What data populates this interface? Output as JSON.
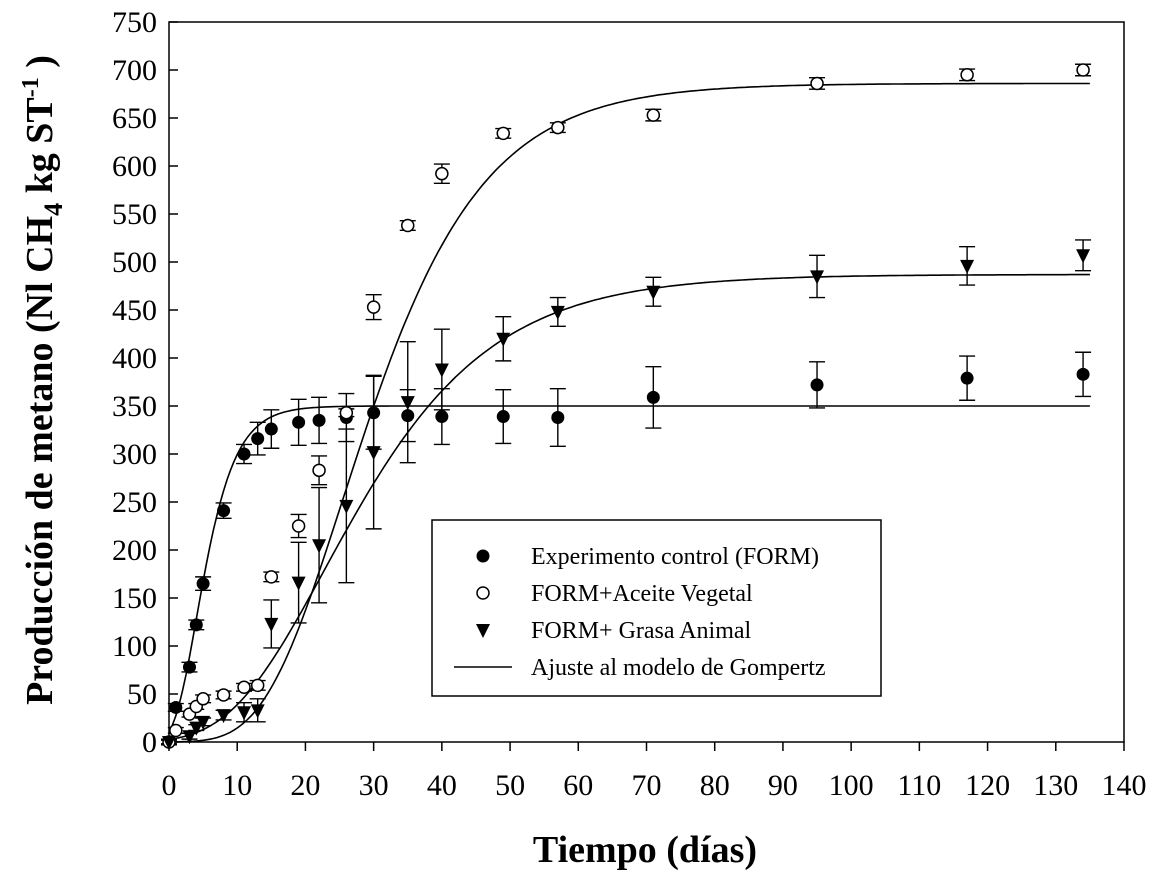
{
  "chart_data": {
    "type": "scatter",
    "title": "",
    "xlabel": "Tiempo (días)",
    "ylabel": {
      "prefix": "Producción de metano (Nl CH",
      "sub": "4",
      "mid": " kg ST",
      "sup": "-1",
      "suffix": " )"
    },
    "xlim": [
      0,
      140
    ],
    "ylim": [
      0,
      750
    ],
    "xticks": [
      0,
      10,
      20,
      30,
      40,
      50,
      60,
      70,
      80,
      90,
      100,
      110,
      120,
      130,
      140
    ],
    "yticks": [
      0,
      50,
      100,
      150,
      200,
      250,
      300,
      350,
      400,
      450,
      500,
      550,
      600,
      650,
      700,
      750
    ],
    "grid": false,
    "legend_position": "lower-center",
    "series": [
      {
        "name": "Experimento control (FORM)",
        "marker": "filled-circle",
        "points": [
          {
            "x": 0,
            "y": 0,
            "err": 3
          },
          {
            "x": 1,
            "y": 36,
            "err": 4
          },
          {
            "x": 3,
            "y": 78,
            "err": 5
          },
          {
            "x": 4,
            "y": 122,
            "err": 5
          },
          {
            "x": 5,
            "y": 165,
            "err": 7
          },
          {
            "x": 8,
            "y": 241,
            "err": 8
          },
          {
            "x": 11,
            "y": 300,
            "err": 10
          },
          {
            "x": 13,
            "y": 316,
            "err": 17
          },
          {
            "x": 15,
            "y": 326,
            "err": 20
          },
          {
            "x": 19,
            "y": 333,
            "err": 24
          },
          {
            "x": 22,
            "y": 335,
            "err": 24
          },
          {
            "x": 26,
            "y": 338,
            "err": 25
          },
          {
            "x": 30,
            "y": 343,
            "err": 38
          },
          {
            "x": 35,
            "y": 340,
            "err": 27
          },
          {
            "x": 40,
            "y": 339,
            "err": 29
          },
          {
            "x": 49,
            "y": 339,
            "err": 28
          },
          {
            "x": 57,
            "y": 338,
            "err": 30
          },
          {
            "x": 71,
            "y": 359,
            "err": 32
          },
          {
            "x": 95,
            "y": 372,
            "err": 24
          },
          {
            "x": 117,
            "y": 379,
            "err": 23
          },
          {
            "x": 134,
            "y": 383,
            "err": 23
          }
        ],
        "fit": {
          "A": 350,
          "mu": 40,
          "lambda": 0.8
        }
      },
      {
        "name": "FORM+Aceite Vegetal",
        "marker": "open-circle",
        "points": [
          {
            "x": 0,
            "y": 0,
            "err": 2
          },
          {
            "x": 1,
            "y": 12,
            "err": 3
          },
          {
            "x": 3,
            "y": 29,
            "err": 3
          },
          {
            "x": 4,
            "y": 37,
            "err": 3
          },
          {
            "x": 5,
            "y": 45,
            "err": 4
          },
          {
            "x": 8,
            "y": 49,
            "err": 4
          },
          {
            "x": 11,
            "y": 57,
            "err": 4
          },
          {
            "x": 13,
            "y": 59,
            "err": 5
          },
          {
            "x": 15,
            "y": 172,
            "err": 5
          },
          {
            "x": 19,
            "y": 225,
            "err": 12
          },
          {
            "x": 22,
            "y": 283,
            "err": 15
          },
          {
            "x": 26,
            "y": 343,
            "err": 4
          },
          {
            "x": 30,
            "y": 453,
            "err": 13
          },
          {
            "x": 35,
            "y": 538,
            "err": 5
          },
          {
            "x": 40,
            "y": 592,
            "err": 10
          },
          {
            "x": 49,
            "y": 634,
            "err": 5
          },
          {
            "x": 57,
            "y": 640,
            "err": 5
          },
          {
            "x": 71,
            "y": 653,
            "err": 6
          },
          {
            "x": 95,
            "y": 686,
            "err": 6
          },
          {
            "x": 117,
            "y": 695,
            "err": 6
          },
          {
            "x": 134,
            "y": 700,
            "err": 6
          }
        ],
        "fit": {
          "A": 686,
          "mu": 22,
          "lambda": 14
        }
      },
      {
        "name": "FORM+ Grasa Animal",
        "marker": "filled-triangle-down",
        "points": [
          {
            "x": 0,
            "y": 0,
            "err": 2
          },
          {
            "x": 3,
            "y": 6,
            "err": 3
          },
          {
            "x": 4,
            "y": 15,
            "err": 3
          },
          {
            "x": 5,
            "y": 21,
            "err": 4
          },
          {
            "x": 8,
            "y": 28,
            "err": 5
          },
          {
            "x": 11,
            "y": 31,
            "err": 10
          },
          {
            "x": 13,
            "y": 33,
            "err": 12
          },
          {
            "x": 15,
            "y": 123,
            "err": 25
          },
          {
            "x": 19,
            "y": 166,
            "err": 42
          },
          {
            "x": 22,
            "y": 205,
            "err": 60
          },
          {
            "x": 26,
            "y": 246,
            "err": 80
          },
          {
            "x": 30,
            "y": 302,
            "err": 80
          },
          {
            "x": 35,
            "y": 354,
            "err": 63
          },
          {
            "x": 40,
            "y": 388,
            "err": 42
          },
          {
            "x": 49,
            "y": 420,
            "err": 23
          },
          {
            "x": 57,
            "y": 448,
            "err": 15
          },
          {
            "x": 71,
            "y": 469,
            "err": 15
          },
          {
            "x": 95,
            "y": 485,
            "err": 22
          },
          {
            "x": 117,
            "y": 496,
            "err": 20
          },
          {
            "x": 134,
            "y": 507,
            "err": 16
          }
        ],
        "fit": {
          "A": 487,
          "mu": 13,
          "lambda": 9
        }
      }
    ],
    "fit_series": {
      "name": "Ajuste al modelo de Gompertz",
      "type": "line",
      "x_range": [
        0,
        135
      ]
    }
  }
}
